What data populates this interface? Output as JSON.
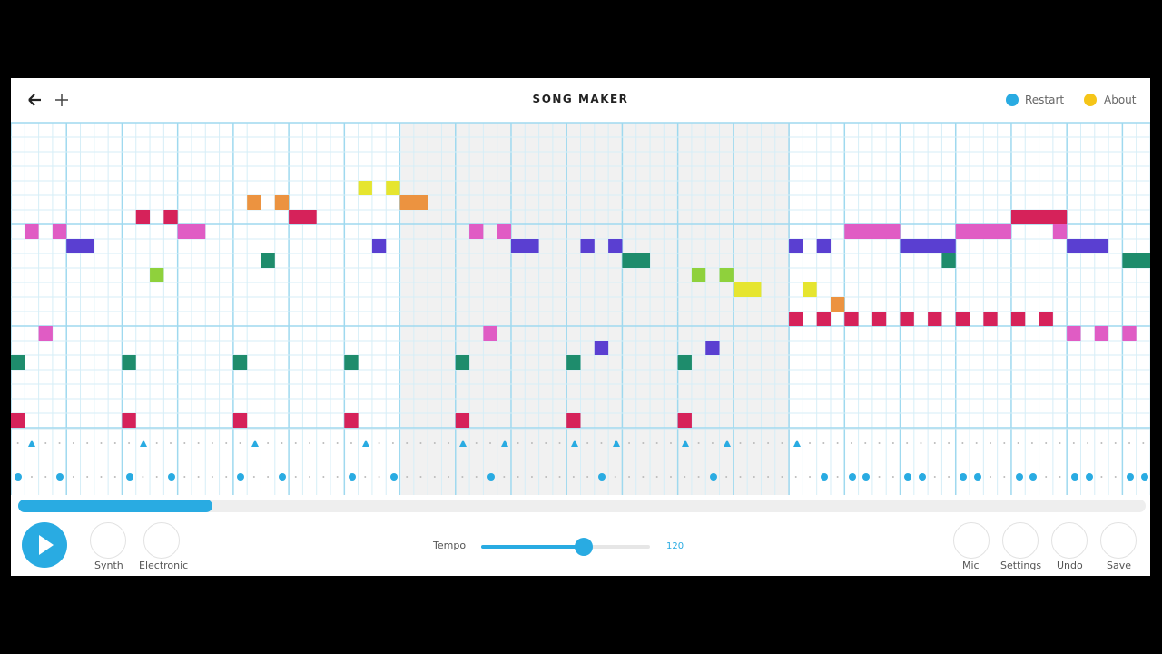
{
  "header": {
    "title": "SONG MAKER",
    "restart": "Restart",
    "about": "About"
  },
  "controls": {
    "instrument": "Synth",
    "percussion": "Electronic",
    "tempo_label": "Tempo",
    "tempo_value": "120",
    "mic": "Mic",
    "settings": "Settings",
    "undo": "Undo",
    "save": "Save"
  }
}
